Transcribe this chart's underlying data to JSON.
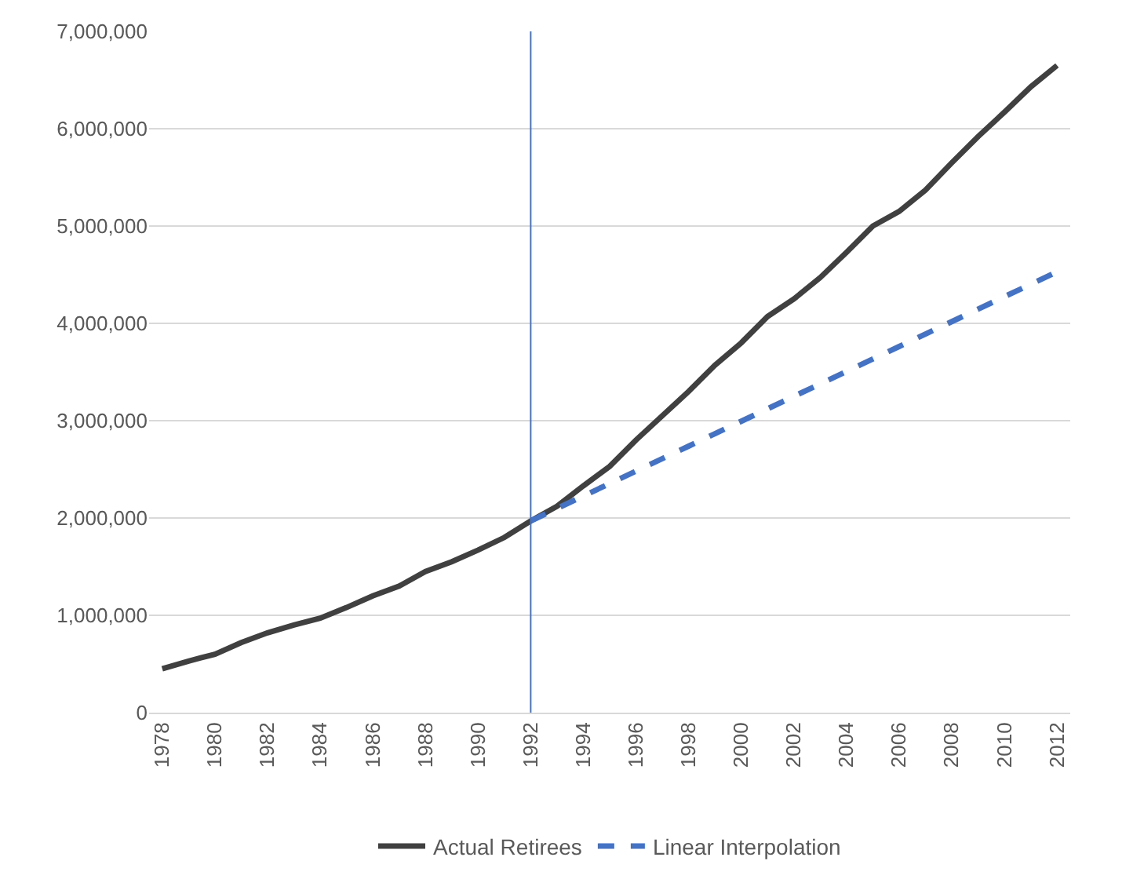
{
  "chart_data": {
    "type": "line",
    "categories": [
      "1978",
      null,
      "1980",
      null,
      "1982",
      null,
      "1984",
      null,
      "1986",
      null,
      "1988",
      null,
      "1990",
      null,
      "1992",
      null,
      "1994",
      null,
      "1996",
      null,
      "1998",
      null,
      "2000",
      null,
      "2002",
      null,
      "2004",
      null,
      "2006",
      null,
      "2008",
      null,
      "2010",
      null,
      "2012"
    ],
    "series": [
      {
        "name": "Actual Retirees",
        "color": "#404040",
        "line_style": "solid",
        "values": [
          450000,
          530000,
          600000,
          720000,
          820000,
          900000,
          970000,
          1080000,
          1200000,
          1300000,
          1450000,
          1550000,
          1670000,
          1800000,
          1970000,
          2120000,
          2330000,
          2530000,
          2800000,
          3050000,
          3300000,
          3570000,
          3800000,
          4070000,
          4250000,
          4470000,
          4730000,
          5000000,
          5150000,
          5370000,
          5650000,
          5920000,
          6170000,
          6430000,
          6650000
        ]
      },
      {
        "name": "Linear Interpolation",
        "color": "#4472c4",
        "line_style": "dashed",
        "values": [
          null,
          null,
          null,
          null,
          null,
          null,
          null,
          null,
          null,
          null,
          null,
          null,
          null,
          null,
          1970000,
          2098000,
          2226000,
          2354000,
          2482000,
          2610000,
          2738000,
          2866000,
          2994000,
          3122000,
          3250000,
          3378000,
          3506000,
          3634000,
          3762000,
          3890000,
          4018000,
          4146000,
          4274000,
          4402000,
          4530000
        ]
      }
    ],
    "ylim": [
      0,
      7000000
    ],
    "yticks": [
      {
        "value": 0,
        "label": "0"
      },
      {
        "value": 1000000,
        "label": "1,000,000"
      },
      {
        "value": 2000000,
        "label": "2,000,000"
      },
      {
        "value": 3000000,
        "label": "3,000,000"
      },
      {
        "value": 4000000,
        "label": "4,000,000"
      },
      {
        "value": 5000000,
        "label": "5,000,000"
      },
      {
        "value": 6000000,
        "label": "6,000,000"
      },
      {
        "value": 7000000,
        "label": "7,000,000"
      }
    ],
    "ref_lines": [
      {
        "axis": "x",
        "value": "1992",
        "color": "#4472c4"
      }
    ],
    "grid": "y",
    "legend": "bottom",
    "marker": "none"
  }
}
